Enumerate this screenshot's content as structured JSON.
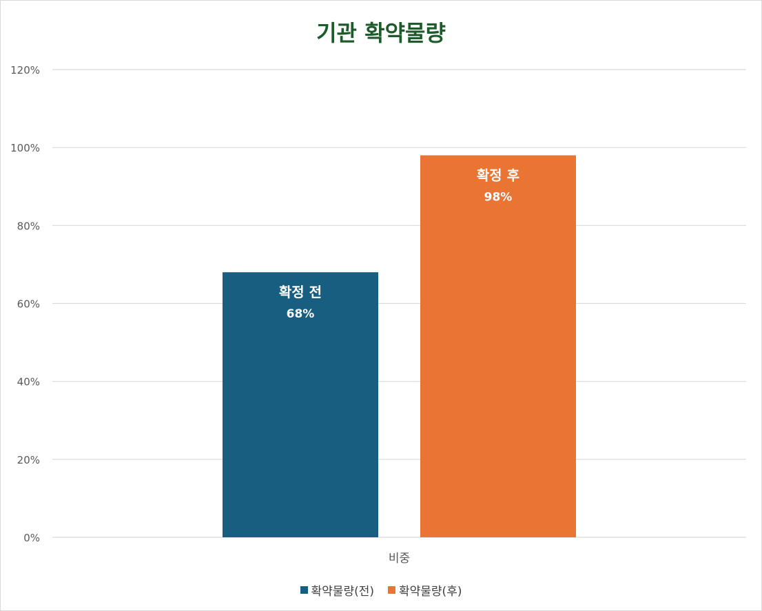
{
  "chart_data": {
    "type": "bar",
    "title": "기관 확약물량",
    "categories": [
      "비중"
    ],
    "series": [
      {
        "name": "확약물량(전)",
        "values": [
          68
        ],
        "data_label_name": "확정 전",
        "data_label_value": "68%",
        "color": "#175e80"
      },
      {
        "name": "확약물량(후)",
        "values": [
          98
        ],
        "data_label_name": "확정 후",
        "data_label_value": "98%",
        "color": "#e97434"
      }
    ],
    "ylim": [
      0,
      120
    ],
    "yticks": [
      "0%",
      "20%",
      "40%",
      "60%",
      "80%",
      "100%",
      "120%"
    ],
    "grid": true,
    "legend_position": "bottom",
    "title_color": "#1e5b2a",
    "grid_color": "#d9d9d9"
  }
}
